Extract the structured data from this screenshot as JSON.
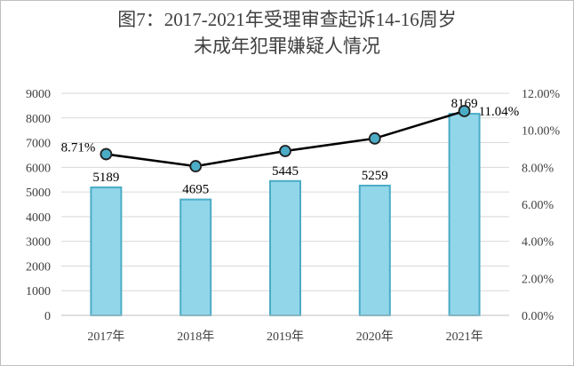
{
  "chart_data": {
    "type": "bar+line",
    "title_lines": [
      "图7：2017-2021年受理审查起诉14-16周岁",
      "未成年犯罪嫌疑人情况"
    ],
    "categories": [
      "2017年",
      "2018年",
      "2019年",
      "2020年",
      "2021年"
    ],
    "series": [
      {
        "type": "bar",
        "axis": "left",
        "values": [
          5189,
          4695,
          5445,
          5259,
          8169
        ],
        "labels": [
          "5189",
          "4695",
          "5445",
          "5259",
          "8169"
        ]
      },
      {
        "type": "line",
        "axis": "right",
        "values": [
          8.71,
          8.06,
          8.88,
          9.56,
          11.04
        ],
        "labels": [
          "8.71%",
          "",
          "",
          "",
          "11.04%"
        ]
      }
    ],
    "left_axis": {
      "min": 0,
      "max": 9000,
      "step": 1000,
      "ticks": [
        "0",
        "1000",
        "2000",
        "3000",
        "4000",
        "5000",
        "6000",
        "7000",
        "8000",
        "9000"
      ]
    },
    "right_axis": {
      "min": 0,
      "max": 12,
      "step": 2,
      "ticks": [
        "0.00%",
        "2.00%",
        "4.00%",
        "6.00%",
        "8.00%",
        "10.00%",
        "12.00%"
      ]
    },
    "grid": true,
    "legend": "none",
    "colors": {
      "bar_fill": "#92d6e9",
      "bar_stroke": "#4bacc6",
      "line": "#000000",
      "marker_fill": "#4bacc6",
      "grid": "#d9d9d9",
      "text": "#404040"
    }
  }
}
